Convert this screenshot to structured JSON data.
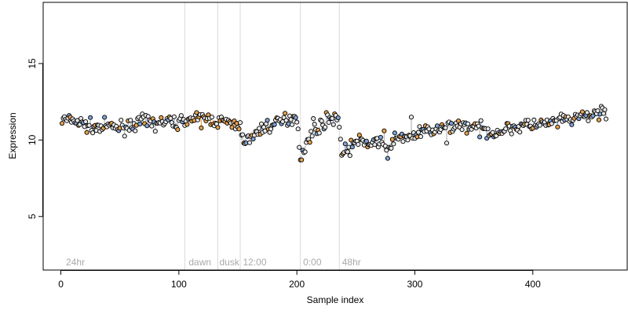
{
  "chart_data": {
    "type": "scatter",
    "xlabel": "Sample index",
    "ylabel": "Expression",
    "xlim": [
      -15,
      480
    ],
    "ylim": [
      1.5,
      19
    ],
    "x_ticks": [
      0,
      100,
      200,
      300,
      400
    ],
    "y_ticks": [
      5,
      10,
      15
    ],
    "grid": false,
    "vlines": [
      105,
      133,
      152,
      203,
      236
    ],
    "annotations": [
      {
        "x": 3,
        "text": "24hr"
      },
      {
        "x": 107,
        "text": "dawn"
      },
      {
        "x": 133,
        "text": "dusk"
      },
      {
        "x": 153,
        "text": "12:00"
      },
      {
        "x": 204,
        "text": "0:00"
      },
      {
        "x": 237,
        "text": "48hr"
      }
    ],
    "colors": {
      "point_edge": "#000000",
      "point_fill_default": "#e8e8e8",
      "fill_orange": "#e8a04a",
      "fill_blue": "#7ea2d6",
      "segment_orange": "#e8a04a",
      "segment_blue": "#7ea2d6",
      "segment_gray": "#b5b5b5",
      "vline": "#d9d9d9",
      "annotation": "#a9a9a9"
    },
    "series_anchors": [
      [
        1,
        11.3
      ],
      [
        10,
        11.3
      ],
      [
        20,
        11.0
      ],
      [
        30,
        10.8
      ],
      [
        40,
        10.9
      ],
      [
        50,
        10.8
      ],
      [
        60,
        11.0
      ],
      [
        70,
        11.2
      ],
      [
        80,
        11.1
      ],
      [
        90,
        11.2
      ],
      [
        100,
        11.1
      ],
      [
        105,
        11.4
      ],
      [
        115,
        11.3
      ],
      [
        125,
        11.4
      ],
      [
        133,
        11.2
      ],
      [
        140,
        11.2
      ],
      [
        146,
        10.9
      ],
      [
        152,
        11.1
      ],
      [
        153,
        10.0
      ],
      [
        160,
        10.1
      ],
      [
        165,
        10.3
      ],
      [
        170,
        10.8
      ],
      [
        180,
        11.0
      ],
      [
        190,
        11.3
      ],
      [
        200,
        11.6
      ],
      [
        203,
        8.7
      ],
      [
        206,
        9.5
      ],
      [
        215,
        10.6
      ],
      [
        225,
        11.3
      ],
      [
        235,
        11.6
      ],
      [
        237,
        10.0
      ],
      [
        238,
        9.2
      ],
      [
        245,
        9.5
      ],
      [
        250,
        9.9
      ],
      [
        260,
        9.8
      ],
      [
        270,
        9.9
      ],
      [
        275,
        9.2
      ],
      [
        280,
        9.9
      ],
      [
        290,
        10.2
      ],
      [
        300,
        10.3
      ],
      [
        310,
        10.6
      ],
      [
        320,
        10.6
      ],
      [
        330,
        10.9
      ],
      [
        340,
        11.0
      ],
      [
        350,
        10.8
      ],
      [
        360,
        10.6
      ],
      [
        370,
        10.5
      ],
      [
        380,
        10.8
      ],
      [
        390,
        10.9
      ],
      [
        400,
        11.0
      ],
      [
        410,
        11.0
      ],
      [
        420,
        11.2
      ],
      [
        430,
        11.3
      ],
      [
        440,
        11.5
      ],
      [
        450,
        11.6
      ],
      [
        460,
        11.9
      ]
    ],
    "n_points": 462,
    "noise_sd": 0.33,
    "low_dips": [
      [
        203,
        8.7
      ],
      [
        204,
        8.7
      ],
      [
        238,
        9.0
      ],
      [
        239,
        9.1
      ],
      [
        277,
        8.8
      ],
      [
        327,
        9.8
      ],
      [
        297,
        11.5
      ],
      [
        214,
        11.4
      ],
      [
        274,
        10.6
      ]
    ]
  }
}
